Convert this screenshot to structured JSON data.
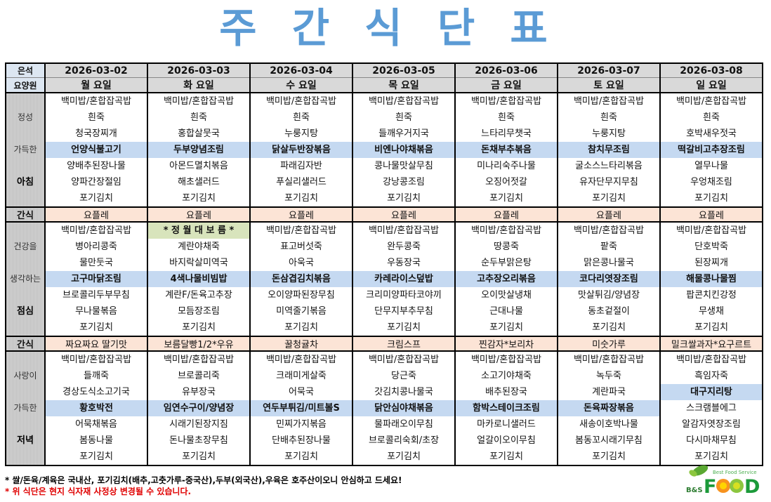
{
  "title": "주 간 식 단 표",
  "corner": [
    "은석",
    "요양원"
  ],
  "dates": [
    "2026-03-02",
    "2026-03-03",
    "2026-03-04",
    "2026-03-05",
    "2026-03-06",
    "2026-03-07",
    "2026-03-08"
  ],
  "weekdays": [
    "월 요일",
    "화 요일",
    "수 요일",
    "목 요일",
    "금 요일",
    "토 요일",
    "일 요일"
  ],
  "meals": [
    {
      "labels": [
        "",
        "정성",
        "",
        "가득한",
        "",
        "아침",
        ""
      ],
      "highlight": [
        3,
        3,
        3,
        3,
        3,
        3,
        3
      ],
      "special": [
        null,
        null,
        null,
        null,
        null,
        null,
        null
      ],
      "days": [
        [
          "백미밥/혼합잡곡밥",
          "흰죽",
          "청국장찌개",
          "언양식불고기",
          "양배추된장나물",
          "양파간장절임",
          "포기김치"
        ],
        [
          "백미밥/혼합잡곡밥",
          "흰죽",
          "홍합살뭇국",
          "두부양념조림",
          "아몬드멸치볶음",
          "해초샐러드",
          "포기김치"
        ],
        [
          "백미밥/혼합잡곡밥",
          "흰죽",
          "누룽지탕",
          "닭살두반장볶음",
          "파래김자반",
          "푸실리샐러드",
          "포기김치"
        ],
        [
          "백미밥/혼합잡곡밥",
          "흰죽",
          "들깨우거지국",
          "비엔나야채볶음",
          "콩나물맛살무침",
          "강낭콩조림",
          "포기김치"
        ],
        [
          "백미밥/혼합잡곡밥",
          "흰죽",
          "느타리무챗국",
          "돈채부추볶음",
          "미나리숙주나물",
          "오징어젓갈",
          "포기김치"
        ],
        [
          "백미밥/혼합잡곡밥",
          "흰죽",
          "누룽지탕",
          "참치무조림",
          "굴소스느타리볶음",
          "유자단무지무침",
          "포기김치"
        ],
        [
          "백미밥/혼합잡곡밥",
          "흰죽",
          "호박새우젓국",
          "떡갈비고추장조림",
          "열무나물",
          "우엉채조림",
          "포기김치"
        ]
      ]
    },
    {
      "snack_label": "간식",
      "snacks": [
        "요플레",
        "요플레",
        "요플레",
        "요플레",
        "요플레",
        "요플레",
        "요플레"
      ]
    },
    {
      "labels": [
        "",
        "건강을",
        "",
        "생각하는",
        "",
        "점심",
        ""
      ],
      "highlight": [
        3,
        3,
        3,
        3,
        3,
        3,
        3
      ],
      "special": [
        null,
        0,
        null,
        null,
        null,
        null,
        null
      ],
      "days": [
        [
          "백미밥/혼합잡곡밥",
          "병아리콩죽",
          "물만둣국",
          "고구마닭조림",
          "브로콜리두부무침",
          "무나물볶음",
          "포기김치"
        ],
        [
          "* 정 월 대 보 름 *",
          "계란야채죽",
          "바지락살미역국",
          "4색나물비빔밥",
          "계란F/돈육고추장",
          "모듬장조림",
          "포기김치"
        ],
        [
          "백미밥/혼합잡곡밥",
          "표고버섯죽",
          "아욱국",
          "돈삼겹김치볶음",
          "오이양파된장무침",
          "미역줄기볶음",
          "포기김치"
        ],
        [
          "백미밥/혼합잡곡밥",
          "완두콩죽",
          "우동장국",
          "카레라이스덮밥",
          "크리미양파타코야끼",
          "단무지부추무침",
          "포기김치"
        ],
        [
          "백미밥/혼합잡곡밥",
          "땅콩죽",
          "순두부맑은탕",
          "고추장오리볶음",
          "오이맛살냉채",
          "근대나물",
          "포기김치"
        ],
        [
          "백미밥/혼합잡곡밥",
          "팥죽",
          "맑은콩나물국",
          "코다리엿장조림",
          "맛살튀김/양념장",
          "동초겉절이",
          "포기김치"
        ],
        [
          "백미밥/혼합잡곡밥",
          "단호박죽",
          "된장찌개",
          "해물콩나물찜",
          "팝콘치킨강정",
          "무생채",
          "포기김치"
        ]
      ]
    },
    {
      "snack_label": "간식",
      "snacks": [
        "짜요짜요 딸기맛",
        "보름달빵1/2*우유",
        "꿀청귤차",
        "크림스프",
        "찐감자*보리차",
        "미숫가루",
        "밀크쌀과자*요구르트"
      ]
    },
    {
      "labels": [
        "",
        "사랑이",
        "",
        "가득한",
        "",
        "저녁",
        ""
      ],
      "highlight": [
        3,
        3,
        3,
        3,
        3,
        3,
        2
      ],
      "special": [
        null,
        null,
        null,
        null,
        null,
        null,
        null
      ],
      "days": [
        [
          "백미밥/혼합잡곡밥",
          "들깨죽",
          "경상도식소고기국",
          "황호박전",
          "어묵채볶음",
          "봄동나물",
          "포기김치"
        ],
        [
          "백미밥/혼합잡곡밥",
          "브로콜리죽",
          "유부장국",
          "임연수구이/양념장",
          "시래기된장지짐",
          "돈나물초장무침",
          "포기김치"
        ],
        [
          "백미밥/혼합잡곡밥",
          "크래미게살죽",
          "어묵국",
          "연두부튀김/미트볼S",
          "민찌가지볶음",
          "단배추된장나물",
          "포기김치"
        ],
        [
          "백미밥/혼합잡곡밥",
          "당근죽",
          "갓김치콩나물국",
          "닭안심야채볶음",
          "물파래오이무침",
          "브로콜리숙회/초장",
          "포기김치"
        ],
        [
          "백미밥/혼합잡곡밥",
          "소고기야채죽",
          "배추된장국",
          "함박스테이크조림",
          "마카로니샐러드",
          "얼갈이오이무침",
          "포기김치"
        ],
        [
          "백미밥/혼합잡곡밥",
          "녹두죽",
          "계란파국",
          "돈육짜장볶음",
          "새송이호박나물",
          "봄동꼬시래기무침",
          "포기김치"
        ],
        [
          "백미밥/혼합잡곡밥",
          "흑임자죽",
          "대구지리탕",
          "스크램블에그",
          "알감자엿장조림",
          "다시마채무침",
          "포기김치"
        ]
      ]
    }
  ],
  "notes": [
    "* 쌀/돈육/계육은 국내산, 포기김치(배추,고춧가루-중국산),두부(외국산),우육은 호주산이오니 안심하고 드세요!",
    "* 위 식단은 현지 식자재 사정상 변경될 수 있습니다."
  ],
  "logo": {
    "brand": "B&S",
    "word": "FOOD",
    "tagline": "Best Food Service"
  },
  "colors": {
    "title": "#5b9bd5",
    "highlight": "#c5d9f1",
    "snack": "#fce4d6",
    "special": "#d8e4bc",
    "warning": "#e00000"
  }
}
